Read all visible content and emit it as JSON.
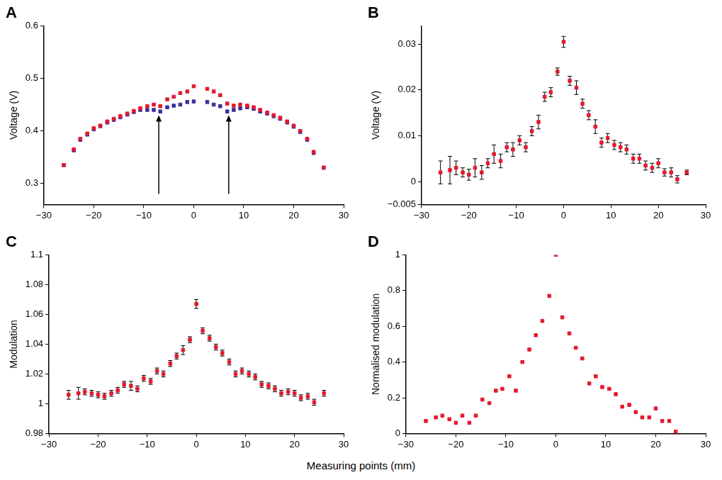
{
  "xlabel": "Measuring points (mm)",
  "chart_data": [
    {
      "type": "scatter",
      "title": "A",
      "ylabel": "Voltage (V)",
      "x": [
        -26,
        -24,
        -22.7,
        -21.3,
        -20,
        -18.7,
        -17.3,
        -16,
        -14.7,
        -13.3,
        -12,
        -10.7,
        -9.3,
        -8,
        -6.7,
        -5.3,
        -4,
        -2.7,
        -1.3,
        0,
        1.3,
        2.7,
        4,
        5.3,
        6.7,
        8,
        9.3,
        10.7,
        12,
        13.3,
        14.7,
        16,
        17.3,
        18.7,
        20,
        21.3,
        22.7,
        24,
        26
      ],
      "series": [
        {
          "color": "#e31a2f",
          "marker": "square",
          "values": [
            0.335,
            0.365,
            0.385,
            0.395,
            0.405,
            0.41,
            0.418,
            0.423,
            0.428,
            0.433,
            0.438,
            0.443,
            0.447,
            0.45,
            0.447,
            0.46,
            0.465,
            0.472,
            0.475,
            0.485,
            null,
            0.48,
            0.475,
            0.468,
            0.452,
            0.448,
            0.45,
            0.448,
            0.445,
            0.44,
            0.435,
            0.43,
            0.425,
            0.418,
            0.41,
            0.4,
            0.385,
            0.36,
            0.33
          ]
        },
        {
          "color": "#3b2f9e",
          "marker": "square",
          "values": [
            0.335,
            0.363,
            0.383,
            0.393,
            0.403,
            0.409,
            0.416,
            0.421,
            0.426,
            0.431,
            0.436,
            0.44,
            0.44,
            0.44,
            0.437,
            0.445,
            0.448,
            0.45,
            0.455,
            0.456,
            null,
            0.455,
            0.45,
            0.447,
            0.437,
            0.44,
            0.443,
            0.445,
            0.442,
            0.437,
            0.433,
            0.428,
            0.423,
            0.416,
            0.408,
            0.398,
            0.383,
            0.358,
            0.33
          ]
        }
      ],
      "xlim": [
        -30,
        30
      ],
      "xticks": [
        {
          "value": -30,
          "label": "−30"
        },
        {
          "value": -20,
          "label": "−20"
        },
        {
          "value": -10,
          "label": "−10"
        },
        0,
        10,
        20,
        30
      ],
      "ylim": [
        0.26,
        0.6
      ],
      "yticks": [
        0.3,
        0.4,
        0.5,
        0.6
      ],
      "grid": false,
      "arrows": [
        {
          "x": -7,
          "y_from": 0.28,
          "y_to": 0.43
        },
        {
          "x": 7,
          "y_from": 0.28,
          "y_to": 0.43
        }
      ]
    },
    {
      "type": "scatter",
      "title": "B",
      "ylabel": "Voltage (V)",
      "x": [
        -26,
        -24,
        -22.7,
        -21.3,
        -20,
        -18.7,
        -17.3,
        -16,
        -14.7,
        -13.3,
        -12,
        -10.7,
        -9.3,
        -8,
        -6.7,
        -5.3,
        -4,
        -2.7,
        -1.3,
        0,
        1.3,
        2.7,
        4,
        5.3,
        6.7,
        8,
        9.3,
        10.7,
        12,
        13.3,
        14.7,
        16,
        17.3,
        18.7,
        20,
        21.3,
        22.7,
        24,
        26
      ],
      "series": [
        {
          "color": "#e31a2f",
          "marker": "square",
          "values": [
            0.002,
            0.0025,
            0.003,
            0.002,
            0.0015,
            0.003,
            0.002,
            0.004,
            0.006,
            0.0045,
            0.0075,
            0.007,
            0.009,
            0.0075,
            0.011,
            0.013,
            0.0185,
            0.0195,
            0.024,
            0.0305,
            0.022,
            0.0205,
            0.017,
            0.0145,
            0.012,
            0.0085,
            0.0095,
            0.008,
            0.0075,
            0.007,
            0.005,
            0.005,
            0.0035,
            0.003,
            0.004,
            0.002,
            0.002,
            0.0005,
            0.002
          ],
          "errors": [
            0.0025,
            0.003,
            0.0015,
            0.001,
            0.0012,
            0.002,
            0.0015,
            0.001,
            0.002,
            0.0015,
            0.001,
            0.0015,
            0.001,
            0.001,
            0.001,
            0.0015,
            0.001,
            0.001,
            0.0008,
            0.0012,
            0.001,
            0.0015,
            0.001,
            0.001,
            0.0015,
            0.001,
            0.001,
            0.001,
            0.001,
            0.001,
            0.001,
            0.001,
            0.001,
            0.001,
            0.001,
            0.0008,
            0.001,
            0.0008,
            0.0005
          ]
        }
      ],
      "xlim": [
        -30,
        30
      ],
      "xticks": [
        {
          "value": -30,
          "label": "−30"
        },
        {
          "value": -20,
          "label": "−20"
        },
        {
          "value": -10,
          "label": "−10"
        },
        0,
        10,
        20,
        30
      ],
      "ylim": [
        -0.005,
        0.034
      ],
      "yticks": [
        {
          "value": -0.005,
          "label": "−0.005"
        },
        0,
        0.01,
        0.02,
        0.03
      ],
      "grid": false
    },
    {
      "type": "scatter",
      "title": "C",
      "ylabel": "Modulation",
      "x": [
        -26,
        -24,
        -22.7,
        -21.3,
        -20,
        -18.7,
        -17.3,
        -16,
        -14.7,
        -13.3,
        -12,
        -10.7,
        -9.3,
        -8,
        -6.7,
        -5.3,
        -4,
        -2.7,
        -1.3,
        0,
        1.3,
        2.7,
        4,
        5.3,
        6.7,
        8,
        9.3,
        10.7,
        12,
        13.3,
        14.7,
        16,
        17.3,
        18.7,
        20,
        21.3,
        22.7,
        24,
        26
      ],
      "series": [
        {
          "color": "#e31a2f",
          "marker": "square",
          "values": [
            1.006,
            1.007,
            1.008,
            1.007,
            1.006,
            1.005,
            1.007,
            1.009,
            1.013,
            1.012,
            1.01,
            1.017,
            1.015,
            1.022,
            1.02,
            1.027,
            1.032,
            1.036,
            1.043,
            1.067,
            1.049,
            1.044,
            1.038,
            1.034,
            1.028,
            1.02,
            1.022,
            1.02,
            1.018,
            1.013,
            1.012,
            1.01,
            1.007,
            1.008,
            1.007,
            1.004,
            1.005,
            1.001,
            1.007
          ],
          "errors": [
            0.003,
            0.004,
            0.002,
            0.002,
            0.002,
            0.002,
            0.002,
            0.002,
            0.002,
            0.003,
            0.002,
            0.002,
            0.002,
            0.002,
            0.002,
            0.002,
            0.002,
            0.003,
            0.002,
            0.003,
            0.002,
            0.002,
            0.002,
            0.002,
            0.002,
            0.002,
            0.002,
            0.002,
            0.002,
            0.002,
            0.002,
            0.002,
            0.002,
            0.002,
            0.002,
            0.002,
            0.002,
            0.002,
            0.002
          ]
        }
      ],
      "xlim": [
        -30,
        30
      ],
      "xticks": [
        {
          "value": -30,
          "label": "−30"
        },
        {
          "value": -20,
          "label": "−20"
        },
        {
          "value": -10,
          "label": "−10"
        },
        0,
        10,
        20,
        30
      ],
      "ylim": [
        0.98,
        1.1
      ],
      "yticks": [
        0.98,
        1,
        1.02,
        1.04,
        1.06,
        1.08,
        1.1
      ],
      "grid": false
    },
    {
      "type": "scatter",
      "title": "D",
      "ylabel": "Normalised modulation",
      "x": [
        -26,
        -24,
        -22.7,
        -21.3,
        -20,
        -18.7,
        -17.3,
        -16,
        -14.7,
        -13.3,
        -12,
        -10.7,
        -9.3,
        -8,
        -6.7,
        -5.3,
        -4,
        -2.7,
        -1.3,
        0,
        1.3,
        2.7,
        4,
        5.3,
        6.7,
        8,
        9.3,
        10.7,
        12,
        13.3,
        14.7,
        16,
        17.3,
        18.7,
        20,
        21.3,
        22.7,
        24,
        26
      ],
      "series": [
        {
          "color": "#e31a2f",
          "marker": "square",
          "values": [
            0.07,
            0.09,
            0.1,
            0.08,
            0.06,
            0.1,
            0.06,
            0.1,
            0.19,
            0.17,
            0.24,
            0.25,
            0.32,
            0.24,
            0.4,
            0.47,
            0.55,
            0.63,
            0.77,
            1,
            0.65,
            0.56,
            0.48,
            0.42,
            0.28,
            0.32,
            0.26,
            0.25,
            0.22,
            0.15,
            0.16,
            0.12,
            0.09,
            0.09,
            0.14,
            0.07,
            0.07,
            0.01,
            null
          ]
        }
      ],
      "xlim": [
        -30,
        30
      ],
      "xticks": [
        {
          "value": -30,
          "label": "−30"
        },
        {
          "value": -20,
          "label": "−20"
        },
        {
          "value": -10,
          "label": "−10"
        },
        0,
        10,
        20,
        30
      ],
      "ylim": [
        0,
        1
      ],
      "yticks": [
        0,
        0.2,
        0.4,
        0.6,
        0.8,
        1
      ],
      "grid": false
    }
  ]
}
